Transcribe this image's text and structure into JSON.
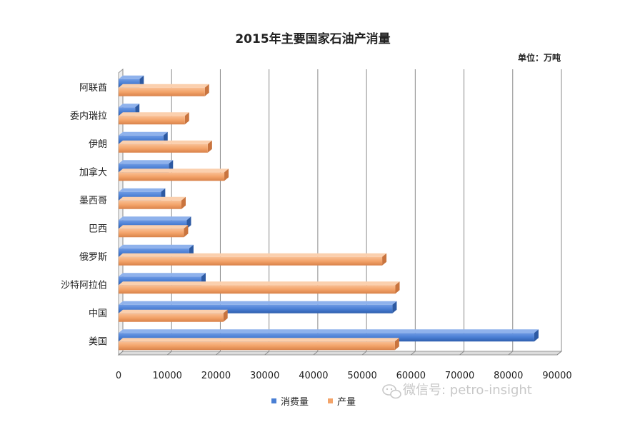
{
  "chart_data": {
    "type": "bar",
    "orientation": "horizontal",
    "title": "2015年主要国家石油产消量",
    "unit_label": "单位：万吨",
    "categories": [
      "阿联酋",
      "委内瑞拉",
      "伊朗",
      "加拿大",
      "墨西哥",
      "巴西",
      "俄罗斯",
      "沙特阿拉伯",
      "中国",
      "美国"
    ],
    "series": [
      {
        "name": "消费量",
        "color": "#4a7fd4",
        "values": [
          4300,
          3400,
          9200,
          10300,
          8700,
          14000,
          14500,
          17000,
          56200,
          85300
        ]
      },
      {
        "name": "产量",
        "color": "#f3a46a",
        "values": [
          17700,
          13600,
          18300,
          21700,
          12900,
          13400,
          54100,
          56800,
          21500,
          56700
        ]
      }
    ],
    "xlim": [
      0,
      90000
    ],
    "xticks": [
      "0",
      "10000",
      "20000",
      "30000",
      "40000",
      "50000",
      "60000",
      "70000",
      "80000",
      "90000"
    ],
    "grid": true,
    "legend_position": "bottom"
  },
  "watermark": {
    "text": "微信号: petro-insight",
    "icon": "wechat-icon"
  }
}
